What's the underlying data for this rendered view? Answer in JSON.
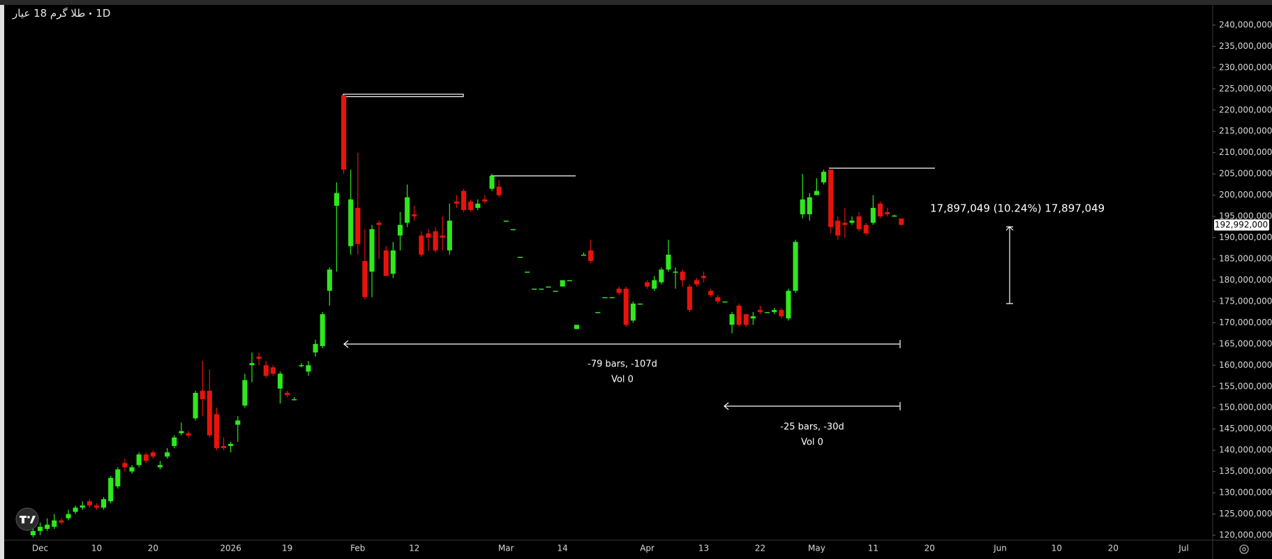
{
  "chart_data": {
    "type": "candlestick",
    "title": "طلا گرم 18 عیار",
    "interval": "1D",
    "up_color": "#2ee81d",
    "down_color": "#e8130c",
    "grid": false,
    "categories": [
      null,
      "Dec",
      null,
      null,
      null,
      null,
      null,
      null,
      null,
      "10",
      null,
      null,
      null,
      null,
      null,
      null,
      null,
      "20",
      null,
      null,
      null,
      null,
      null,
      null,
      null,
      null,
      null,
      null,
      "2026",
      null,
      null,
      null,
      null,
      null,
      null,
      null,
      "19",
      null,
      null,
      null,
      null,
      null,
      null,
      null,
      null,
      null,
      "Feb",
      null,
      null,
      null,
      null,
      null,
      null,
      null,
      "12",
      null,
      null,
      null,
      null,
      null,
      null,
      null,
      null,
      null,
      null,
      null,
      null,
      "Mar",
      null,
      null,
      null,
      null,
      null,
      null,
      null,
      "14",
      null,
      null,
      null,
      null,
      null,
      null,
      null,
      null,
      null,
      null,
      null,
      "Apr",
      null,
      null,
      null,
      null,
      null,
      null,
      null,
      "13",
      null,
      null,
      null,
      null,
      null,
      null,
      null,
      "22",
      null,
      null,
      null,
      null,
      null,
      null,
      null,
      "May",
      null,
      null,
      null,
      null,
      null,
      null,
      null,
      "11",
      null,
      null,
      null,
      null,
      null,
      null,
      null,
      "20",
      null,
      null,
      null,
      null,
      null,
      null,
      null,
      null,
      null,
      "Jun",
      null,
      null,
      null,
      null,
      null,
      null,
      null,
      "10",
      null,
      null,
      null,
      null,
      null,
      null,
      null,
      "20",
      null,
      null,
      null,
      null,
      null,
      null,
      null,
      null,
      null,
      "Jul",
      null,
      null,
      null,
      null
    ],
    "open": [
      120000000,
      121000000,
      121500000,
      122000000,
      123500000,
      124000000,
      125500000,
      126500000,
      128000000,
      127000000,
      126500000,
      128000000,
      131500000,
      137000000,
      135000000,
      136500000,
      139000000,
      139500000,
      136000000,
      138500000,
      141000000,
      144000000,
      144000000,
      147500000,
      154000000,
      154000000,
      148500000,
      141000000,
      141000000,
      146000000,
      150500000,
      160000000,
      162000000,
      160000000,
      159500000,
      154500000,
      153500000,
      152000000,
      160000000,
      158500000,
      163000000,
      164500000,
      177500000,
      197500000,
      223500000,
      188000000,
      197000000,
      184500000,
      182000000,
      193500000,
      187000000,
      181500000,
      190500000,
      193500000,
      195500000,
      190500000,
      191000000,
      191500000,
      190500000,
      187000000,
      198500000,
      201000000,
      198500000,
      197000000,
      199000000,
      201500000,
      202000000,
      194000000,
      192000000,
      185500000,
      182000000,
      178000000,
      178000000,
      178500000,
      177500000,
      178500000,
      180000000,
      168500000,
      186000000,
      187000000,
      172500000,
      176000000,
      176000000,
      178000000,
      178000000,
      170500000,
      174500000,
      179500000,
      178000000,
      179500000,
      182500000,
      182000000,
      182000000,
      178500000,
      180000000,
      181000000,
      177500000,
      176000000,
      175000000,
      169500000,
      174000000,
      172000000,
      171000000,
      173000000,
      172500000,
      172500000,
      173000000,
      171000000,
      177500000,
      195500000,
      195500000,
      200000000,
      203000000,
      206000000,
      194000000,
      193500000,
      193500000,
      195000000,
      193000000,
      193500000,
      198000000,
      196000000,
      195200000,
      194500000,
      null,
      null,
      null,
      null,
      null,
      null,
      null,
      null,
      null,
      null,
      null,
      null,
      null,
      null,
      null,
      null,
      null,
      null,
      null,
      null,
      null,
      null,
      null,
      null,
      null,
      null,
      null,
      null,
      null,
      null,
      null,
      null,
      null,
      null,
      null,
      null,
      null,
      null,
      null,
      null,
      null,
      null,
      null,
      null
    ],
    "high": [
      121500000,
      123000000,
      124000000,
      125000000,
      124000000,
      126000000,
      127000000,
      128000000,
      128500000,
      127500000,
      129000000,
      134000000,
      136000000,
      138000000,
      136500000,
      139500000,
      139500000,
      140000000,
      137500000,
      140500000,
      143500000,
      146500000,
      144500000,
      154000000,
      161000000,
      159000000,
      150000000,
      143000000,
      142000000,
      148000000,
      158000000,
      163000000,
      163000000,
      161000000,
      160000000,
      158500000,
      154000000,
      152500000,
      160500000,
      161000000,
      166000000,
      172500000,
      183000000,
      203000000,
      223500000,
      206000000,
      210000000,
      192000000,
      193000000,
      194000000,
      188000000,
      189000000,
      196000000,
      202500000,
      197500000,
      191500000,
      192000000,
      192500000,
      195000000,
      198000000,
      200000000,
      201500000,
      199000000,
      199000000,
      200000000,
      205000000,
      203500000,
      194000000,
      192000000,
      185500000,
      182000000,
      178000000,
      178000000,
      178500000,
      177500000,
      180000000,
      180000000,
      169500000,
      186500000,
      189500000,
      172500000,
      176000000,
      176000000,
      178500000,
      178500000,
      175000000,
      174500000,
      180000000,
      181000000,
      183000000,
      189500000,
      183000000,
      182500000,
      179000000,
      180500000,
      182000000,
      178000000,
      176500000,
      175000000,
      172500000,
      174500000,
      172000000,
      172500000,
      174000000,
      172500000,
      173500000,
      173500000,
      178000000,
      189500000,
      205000000,
      200500000,
      204000000,
      206000000,
      206000000,
      195000000,
      197000000,
      195000000,
      196000000,
      193500000,
      200000000,
      198500000,
      197000000,
      195400000,
      194500000,
      null,
      null,
      null,
      null,
      null,
      null,
      null,
      null,
      null,
      null,
      null,
      null,
      null,
      null,
      null,
      null,
      null,
      null,
      null,
      null,
      null,
      null,
      null,
      null,
      null,
      null,
      null,
      null,
      null,
      null,
      null,
      null,
      null,
      null,
      null,
      null,
      null,
      null,
      null,
      null,
      null,
      null,
      null,
      null
    ],
    "low": [
      119500000,
      120000000,
      121000000,
      121500000,
      122500000,
      123500000,
      125000000,
      126000000,
      126500000,
      126000000,
      126000000,
      127500000,
      131000000,
      135000000,
      134500000,
      136000000,
      137000000,
      138000000,
      135500000,
      138000000,
      140500000,
      143500000,
      143000000,
      147000000,
      148000000,
      143000000,
      140000000,
      140000000,
      139500000,
      142000000,
      150000000,
      156000000,
      160000000,
      157000000,
      157500000,
      151000000,
      152500000,
      152000000,
      159500000,
      157500000,
      162000000,
      164000000,
      174000000,
      182000000,
      205000000,
      186000000,
      186000000,
      175500000,
      176000000,
      185000000,
      181000000,
      180500000,
      187000000,
      192500000,
      194000000,
      185500000,
      187000000,
      186500000,
      187000000,
      186000000,
      197000000,
      196000000,
      196000000,
      196500000,
      198000000,
      201000000,
      199500000,
      194000000,
      192000000,
      185500000,
      182000000,
      178000000,
      178000000,
      178500000,
      177500000,
      178500000,
      180000000,
      168500000,
      186000000,
      184000000,
      172500000,
      176000000,
      176000000,
      176500000,
      169000000,
      170000000,
      174500000,
      178000000,
      177500000,
      179000000,
      182000000,
      178000000,
      178500000,
      172500000,
      178500000,
      179500000,
      176000000,
      174500000,
      175000000,
      167500000,
      169000000,
      169000000,
      169500000,
      172000000,
      172500000,
      172000000,
      171000000,
      170500000,
      177000000,
      194500000,
      194000000,
      200000000,
      202500000,
      191000000,
      189500000,
      190000000,
      193000000,
      191500000,
      190500000,
      193000000,
      194500000,
      195000000,
      195000000,
      192800000,
      null,
      null,
      null,
      null,
      null,
      null,
      null,
      null,
      null,
      null,
      null,
      null,
      null,
      null,
      null,
      null,
      null,
      null,
      null,
      null,
      null,
      null,
      null,
      null,
      null,
      null,
      null,
      null,
      null,
      null,
      null,
      null,
      null,
      null,
      null,
      null,
      null,
      null,
      null,
      null,
      null,
      null,
      null,
      null
    ],
    "close": [
      121000000,
      122000000,
      122500000,
      123500000,
      123000000,
      125000000,
      126500000,
      127000000,
      127000000,
      126500000,
      128500000,
      133500000,
      135500000,
      136000000,
      136000000,
      139000000,
      137500000,
      138500000,
      136500000,
      139500000,
      143000000,
      144500000,
      143500000,
      153500000,
      152000000,
      143500000,
      140500000,
      140500000,
      141500000,
      147000000,
      156500000,
      160500000,
      161500000,
      157500000,
      158000000,
      158000000,
      153000000,
      152000000,
      160000000,
      160000000,
      165000000,
      172000000,
      182500000,
      200500000,
      206000000,
      199000000,
      188500000,
      176000000,
      192000000,
      193000000,
      181000000,
      187000000,
      193000000,
      199500000,
      195000000,
      186000000,
      190000000,
      187000000,
      190000000,
      194000000,
      198000000,
      196500000,
      196500000,
      198000000,
      198500000,
      204500000,
      200000000,
      194000000,
      192000000,
      185500000,
      182000000,
      178000000,
      178000000,
      178500000,
      177500000,
      180000000,
      180000000,
      169500000,
      186000000,
      184500000,
      172500000,
      176000000,
      176000000,
      177000000,
      169500000,
      174500000,
      174500000,
      178500000,
      180000000,
      182500000,
      186000000,
      182000000,
      180000000,
      173000000,
      179000000,
      180500000,
      176500000,
      175000000,
      175000000,
      172000000,
      169500000,
      169500000,
      171500000,
      172500000,
      172500000,
      173000000,
      171500000,
      177500000,
      189000000,
      199000000,
      199500000,
      201000000,
      205500000,
      192500000,
      190500000,
      193000000,
      194000000,
      192000000,
      191000000,
      197000000,
      195000000,
      195500000,
      195200000,
      192992000,
      null,
      null,
      null,
      null,
      null,
      null,
      null,
      null,
      null,
      null,
      null,
      null,
      null,
      null,
      null,
      null,
      null,
      null,
      null,
      null,
      null,
      null,
      null,
      null,
      null,
      null,
      null,
      null,
      null,
      null,
      null,
      null,
      null,
      null,
      null,
      null,
      null,
      null,
      null,
      null,
      null,
      null,
      null,
      null
    ],
    "ylim": [
      118850000,
      245900000
    ],
    "yticks": [
      {
        "value": 120000000,
        "label": "120,000,000"
      },
      {
        "value": 125000000,
        "label": "125,000,000"
      },
      {
        "value": 130000000,
        "label": "130,000,000"
      },
      {
        "value": 135000000,
        "label": "135,000,000"
      },
      {
        "value": 140000000,
        "label": "140,000,000"
      },
      {
        "value": 145000000,
        "label": "145,000,000"
      },
      {
        "value": 150000000,
        "label": "150,000,000"
      },
      {
        "value": 155000000,
        "label": "155,000,000"
      },
      {
        "value": 160000000,
        "label": "160,000,000"
      },
      {
        "value": 165000000,
        "label": "165,000,000"
      },
      {
        "value": 170000000,
        "label": "170,000,000"
      },
      {
        "value": 175000000,
        "label": "175,000,000"
      },
      {
        "value": 180000000,
        "label": "180,000,000"
      },
      {
        "value": 185000000,
        "label": "185,000,000"
      },
      {
        "value": 190000000,
        "label": "190,000,000"
      },
      {
        "value": 195000000,
        "label": "195,000,000"
      },
      {
        "value": 200000000,
        "label": "200,000,000"
      },
      {
        "value": 205000000,
        "label": "205,000,000"
      },
      {
        "value": 210000000,
        "label": "210,000,000"
      },
      {
        "value": 215000000,
        "label": "215,000,000"
      },
      {
        "value": 220000000,
        "label": "220,000,000"
      },
      {
        "value": 225000000,
        "label": "225,000,000"
      },
      {
        "value": 230000000,
        "label": "230,000,000"
      },
      {
        "value": 235000000,
        "label": "235,000,000"
      },
      {
        "value": 240000000,
        "label": "240,000,000"
      }
    ],
    "last_price": {
      "value": 192992000,
      "label": "192,992,000"
    },
    "measurements": [
      {
        "text": "-79 bars, -107d",
        "volume": "Vol 0"
      },
      {
        "text": "-25 bars, -30d",
        "volume": "Vol 0"
      }
    ],
    "price_range_label": "17,897,049 (10.24%) 17,897,049"
  }
}
